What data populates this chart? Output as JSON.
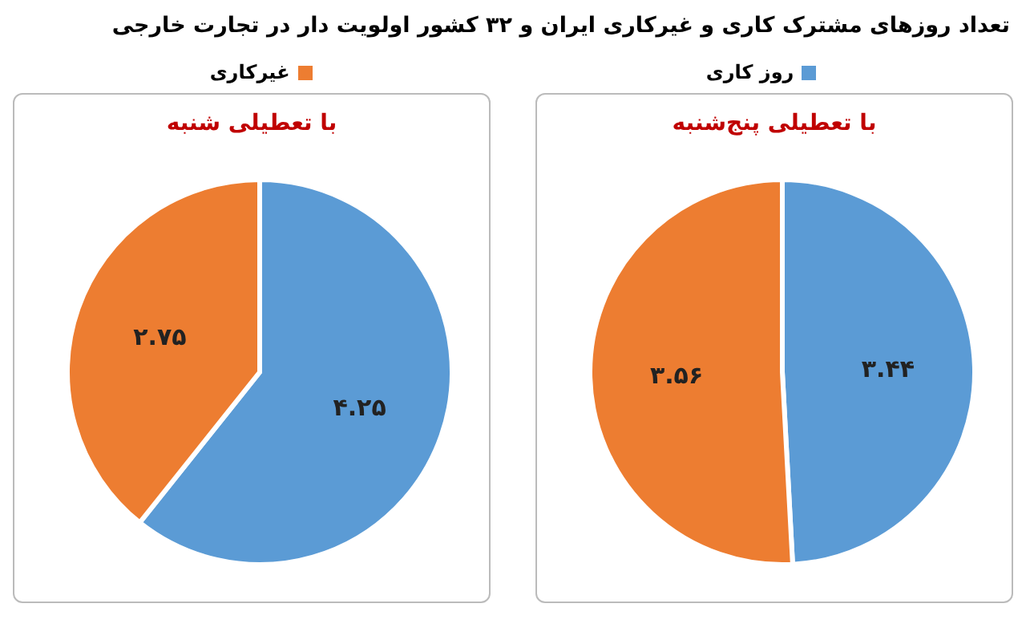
{
  "chart_data": [
    {
      "type": "pie",
      "title": "تعداد روزهای مشترک کاری و غیرکاری ایران و ۳۲ کشور اولویت دار در تجارت خارجی",
      "subtitle": "با تعطیلی پنج‌شنبه",
      "categories": [
        "روز کاری",
        "غیرکاری"
      ],
      "values": [
        3.44,
        3.56
      ],
      "colors": [
        "#5b9bd5",
        "#ed7d31"
      ],
      "value_labels": [
        "۳.۴۴",
        "۳.۵۶"
      ],
      "legend": "top"
    },
    {
      "type": "pie",
      "subtitle": "با تعطیلی شنبه",
      "categories": [
        null,
        null
      ],
      "values": [
        4.25,
        2.75
      ],
      "colors": [
        "#5b9bd5",
        "#ed7d31"
      ],
      "value_labels": [
        "۴.۲۵",
        "۲.۷۵"
      ]
    }
  ]
}
